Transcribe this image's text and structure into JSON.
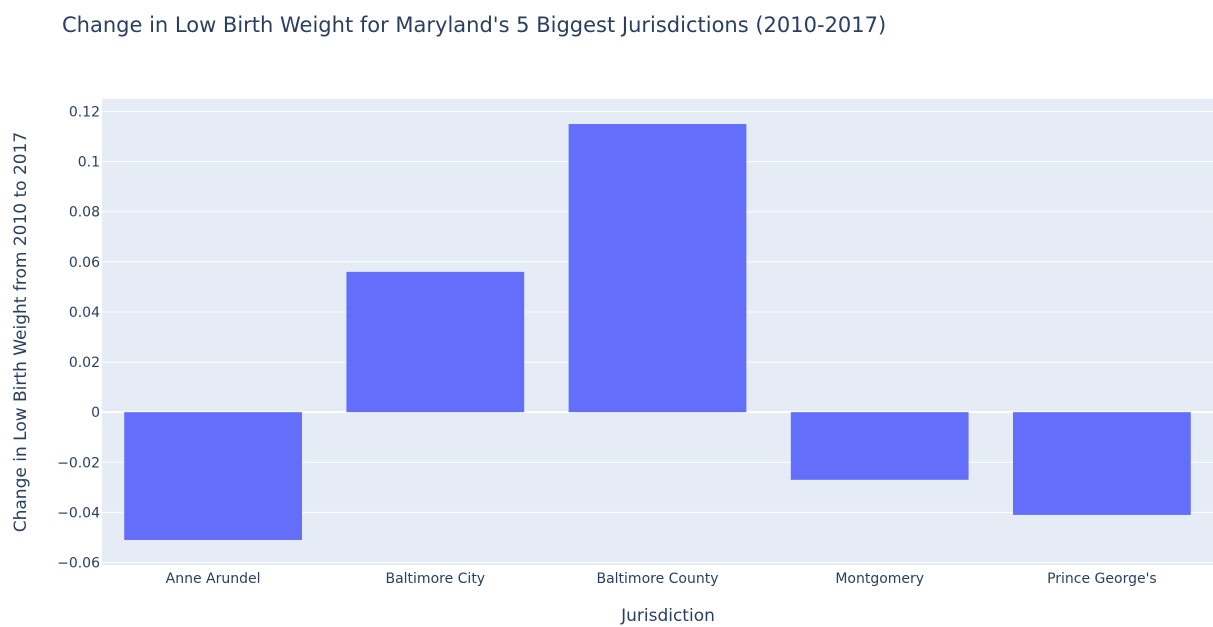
{
  "chart_data": {
    "type": "bar",
    "title": "Change in Low Birth Weight for Maryland's 5 Biggest Jurisdictions (2010-2017)",
    "xlabel": "Jurisdiction",
    "ylabel": "Change in Low Birth Weight from 2010 to 2017",
    "categories": [
      "Anne Arundel",
      "Baltimore City",
      "Baltimore County",
      "Montgomery",
      "Prince George's"
    ],
    "values": [
      -0.051,
      0.056,
      0.115,
      -0.027,
      -0.041
    ],
    "ylim": [
      -0.061,
      0.125
    ],
    "yticks": [
      -0.06,
      -0.04,
      -0.02,
      0,
      0.02,
      0.04,
      0.06,
      0.08,
      0.1,
      0.12
    ],
    "ytick_labels": [
      "−0.06",
      "−0.04",
      "−0.02",
      "0",
      "0.02",
      "0.04",
      "0.06",
      "0.08",
      "0.1",
      "0.12"
    ],
    "grid": true,
    "legend": "none",
    "colors": {
      "bar": "#636efa",
      "plot_bg": "#e5ecf6",
      "grid": "#ffffff",
      "text": "#2a3f5f"
    }
  }
}
